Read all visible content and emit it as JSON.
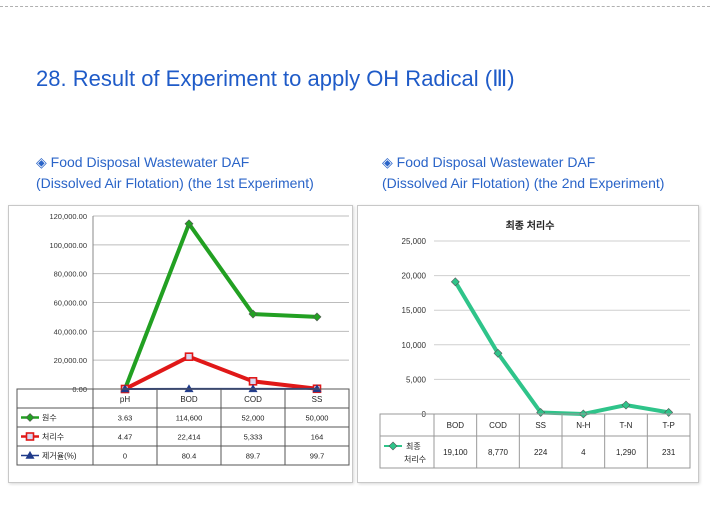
{
  "page": {
    "title_number": "28.",
    "title_text": "Result of Experiment to apply OH Radical (Ⅲ)",
    "left_subtitle": {
      "bullet": "◈",
      "line1": "Food Disposal Wastewater DAF",
      "line2": "(Dissolved Air Flotation) (the 1st Experiment)"
    },
    "right_subtitle": {
      "bullet": "◈",
      "line1": "Food Disposal Wastewater DAF",
      "line2": "(Dissolved Air Flotation) (the 2nd Experiment)"
    }
  },
  "chart_data": [
    {
      "type": "line",
      "title": "",
      "categories": [
        "pH",
        "BOD",
        "COD",
        "SS"
      ],
      "series": [
        {
          "name": "원수",
          "values": [
            3.63,
            114600,
            52000,
            50000
          ],
          "labels": [
            "3.63",
            "114,600",
            "52,000",
            "50,000"
          ],
          "color": "#22a022",
          "marker": "diamond"
        },
        {
          "name": "처리수",
          "values": [
            4.47,
            22414,
            5333,
            164
          ],
          "labels": [
            "4.47",
            "22,414",
            "5,333",
            "164"
          ],
          "color": "#e01818",
          "marker": "square"
        },
        {
          "name": "제거율(%)",
          "values": [
            0,
            80.4,
            89.7,
            99.7
          ],
          "labels": [
            "0",
            "80.4",
            "89.7",
            "99.7"
          ],
          "color": "#1f3a8a",
          "marker": "triangle"
        }
      ],
      "ylim": [
        0,
        120000
      ],
      "yticks": [
        "0.00",
        "20,000.00",
        "40,000.00",
        "60,000.00",
        "80,000.00",
        "100,000.00",
        "120,000.00"
      ],
      "grid": true,
      "legend": "data-table"
    },
    {
      "type": "line",
      "title": "최종  처리수",
      "categories": [
        "BOD",
        "COD",
        "SS",
        "N-H",
        "T-N",
        "T-P"
      ],
      "series": [
        {
          "name": "최종 처리수",
          "name_line1": "최종",
          "name_line2": "처리수",
          "values": [
            19100,
            8770,
            224,
            4,
            1290,
            231
          ],
          "labels": [
            "19,100",
            "8,770",
            "224",
            "4",
            "1,290",
            "231"
          ],
          "color": "#2fc48a",
          "marker": "diamond"
        }
      ],
      "ylim": [
        0,
        25000
      ],
      "yticks": [
        "0",
        "5,000",
        "10,000",
        "15,000",
        "20,000",
        "25,000"
      ],
      "grid": true,
      "legend": "data-table"
    }
  ]
}
